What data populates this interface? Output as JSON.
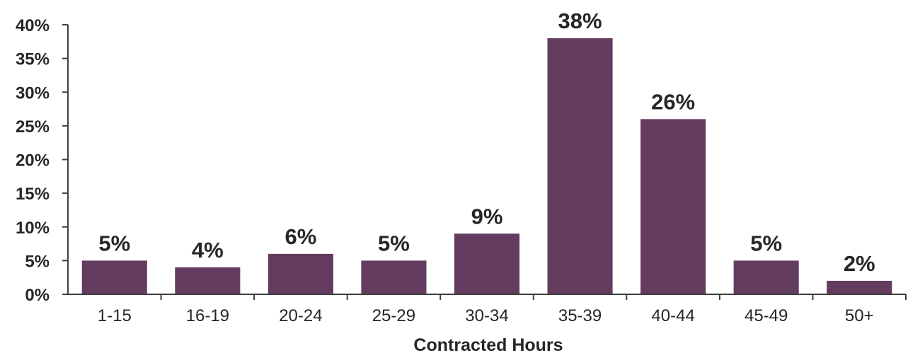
{
  "chart_data": {
    "type": "bar",
    "categories": [
      "1-15",
      "16-19",
      "20-24",
      "25-29",
      "30-34",
      "35-39",
      "40-44",
      "45-49",
      "50+"
    ],
    "values": [
      5,
      4,
      6,
      5,
      9,
      38,
      26,
      5,
      2
    ],
    "value_unit": "%",
    "data_labels": [
      "5%",
      "4%",
      "6%",
      "5%",
      "9%",
      "38%",
      "26%",
      "5%",
      "2%"
    ],
    "title": "",
    "xlabel": "Contracted Hours",
    "ylabel": "",
    "ylim": [
      0,
      40
    ],
    "yticks": [
      "0%",
      "5%",
      "10%",
      "15%",
      "20%",
      "25%",
      "30%",
      "35%",
      "40%"
    ],
    "grid": false,
    "legend": "none",
    "bar_color": "#633c60"
  }
}
